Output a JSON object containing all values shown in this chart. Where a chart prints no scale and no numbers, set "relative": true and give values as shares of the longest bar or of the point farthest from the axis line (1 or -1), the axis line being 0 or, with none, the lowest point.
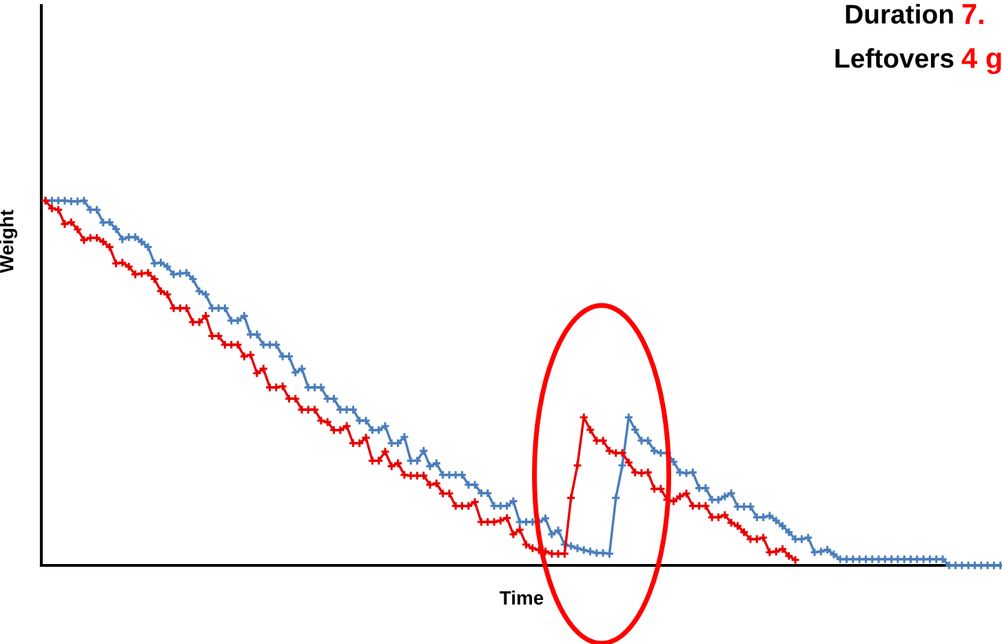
{
  "chart_data": {
    "type": "line",
    "xlabel": "Time",
    "ylabel": "Weight",
    "annotations": [
      "Duration",
      "7.",
      "Leftovers",
      "4 g"
    ],
    "categories": [
      null,
      null,
      null,
      null,
      null,
      null,
      null,
      null,
      null,
      null,
      null,
      null,
      null,
      null,
      null,
      null,
      null,
      null,
      null,
      null,
      null,
      null,
      null,
      null,
      null,
      null,
      null,
      null,
      null,
      null,
      null,
      null,
      null,
      null,
      null,
      null,
      null,
      null,
      null,
      null,
      null,
      null,
      null,
      null,
      null,
      null,
      null,
      null,
      null,
      null,
      null,
      null,
      null,
      null,
      null,
      null,
      null,
      null,
      null,
      null,
      null,
      null,
      null,
      null,
      null,
      null,
      null,
      null,
      null,
      null,
      null,
      null,
      null,
      null,
      null,
      null,
      null,
      null,
      null,
      null,
      null,
      null,
      null,
      null,
      null,
      null,
      null,
      null,
      null,
      null,
      null,
      null,
      null,
      null,
      null,
      null,
      null,
      null,
      null,
      null,
      null,
      null,
      null,
      null,
      null,
      null,
      null,
      null,
      null,
      null,
      null,
      null,
      null,
      null,
      null,
      null,
      null,
      null,
      null,
      null,
      null,
      null,
      null,
      null,
      null,
      null,
      null,
      null,
      null,
      null,
      null,
      null,
      null,
      null,
      null,
      null,
      null,
      null,
      null,
      null,
      null,
      null,
      null,
      null,
      null,
      null,
      null,
      null,
      null,
      null
    ],
    "series": [
      {
        "color": "#4a7ebb",
        "values": [
          1,
          1,
          1,
          1,
          0.998,
          0.998,
          1,
          0.975,
          0.975,
          0.94,
          0.941,
          0.922,
          0.894,
          0.9,
          0.9,
          0.887,
          0.873,
          0.828,
          0.83,
          0.819,
          0.798,
          0.8,
          0.802,
          0.785,
          0.752,
          0.743,
          0.705,
          0.705,
          0.705,
          0.671,
          0.671,
          0.684,
          0.633,
          0.633,
          0.605,
          0.605,
          0.605,
          0.573,
          0.573,
          0.529,
          0.539,
          0.488,
          0.488,
          0.488,
          0.457,
          0.457,
          0.427,
          0.427,
          0.427,
          0.397,
          0.397,
          0.371,
          0.371,
          0.382,
          0.335,
          0.335,
          0.352,
          0.287,
          0.287,
          0.314,
          0.272,
          0.28,
          0.248,
          0.248,
          0.248,
          0.248,
          0.221,
          0.221,
          0.198,
          0.198,
          0.163,
          0.163,
          0.163,
          0.176,
          0.119,
          0.119,
          0.119,
          0.119,
          0.129,
          0.085,
          0.096,
          0.057,
          0.053,
          0.047,
          0.042,
          0.038,
          0.034,
          0.034,
          0.032,
          0.185,
          0.274,
          0.406,
          0.372,
          0.342,
          0.342,
          0.314,
          0.308,
          0.308,
          0.284,
          0.255,
          0.253,
          0.255,
          0.212,
          0.212,
          0.18,
          0.18,
          0.189,
          0.198,
          0.161,
          0.161,
          0.161,
          0.132,
          0.132,
          0.136,
          0.123,
          0.108,
          0.091,
          0.072,
          0.072,
          0.076,
          0.036,
          0.038,
          0.043,
          0.03,
          0.017,
          0.017,
          0.017,
          0.017,
          0.017,
          0.017,
          0.017,
          0.017,
          0.017,
          0.017,
          0.017,
          0.017,
          0.017,
          0.017,
          0.017,
          0.017,
          0.017,
          0,
          0,
          0,
          0,
          0,
          0,
          0,
          0,
          0
        ]
      },
      {
        "color": "#e60000",
        "values": [
          1,
          0.979,
          0.975,
          0.936,
          0.941,
          0.921,
          0.892,
          0.898,
          0.898,
          0.887,
          0.873,
          0.828,
          0.83,
          0.819,
          0.798,
          0.8,
          0.802,
          0.785,
          0.752,
          0.743,
          0.705,
          0.705,
          0.705,
          0.667,
          0.667,
          0.684,
          0.629,
          0.629,
          0.605,
          0.605,
          0.605,
          0.573,
          0.577,
          0.527,
          0.539,
          0.488,
          0.488,
          0.491,
          0.457,
          0.457,
          0.427,
          0.427,
          0.427,
          0.397,
          0.393,
          0.371,
          0.371,
          0.382,
          0.335,
          0.335,
          0.35,
          0.287,
          0.287,
          0.312,
          0.272,
          0.28,
          0.248,
          0.246,
          0.246,
          0.246,
          0.221,
          0.225,
          0.197,
          0.197,
          0.163,
          0.163,
          0.163,
          0.174,
          0.119,
          0.119,
          0.119,
          0.123,
          0.13,
          0.085,
          0.098,
          0.057,
          0.047,
          0.042,
          0.038,
          0.032,
          0.032,
          0.032,
          0.185,
          0.274,
          0.406,
          0.372,
          0.342,
          0.342,
          0.314,
          0.308,
          0.308,
          0.282,
          0.255,
          0.253,
          0.255,
          0.21,
          0.21,
          0.18,
          0.176,
          0.189,
          0.197,
          0.163,
          0.163,
          0.163,
          0.132,
          0.132,
          0.138,
          0.117,
          0.108,
          0.091,
          0.072,
          0.072,
          0.076,
          0.036,
          0.038,
          0.045,
          0.026,
          0.015,
          null,
          null,
          null,
          null,
          null,
          null,
          null,
          null,
          null,
          null,
          null,
          null,
          null,
          null,
          null,
          null,
          null,
          null,
          null,
          null,
          null,
          null,
          null,
          null,
          null,
          null,
          null,
          null,
          null,
          null,
          null,
          null
        ]
      }
    ],
    "relative": true,
    "marker": "cross",
    "line_style": "solid",
    "legend": false,
    "grid": false
  }
}
